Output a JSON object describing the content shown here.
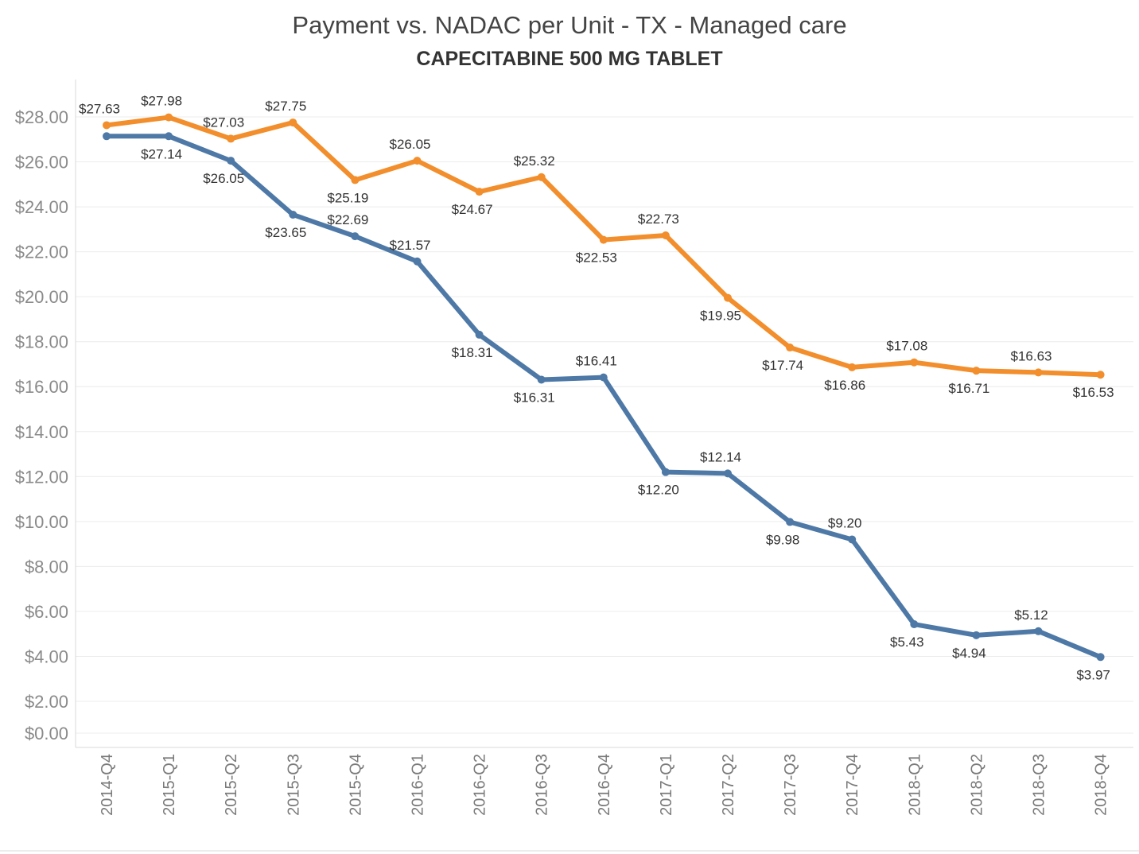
{
  "chart_data": {
    "type": "line",
    "title": "Payment vs. NADAC per Unit - TX - Managed care",
    "subtitle": "CAPECITABINE 500 MG TABLET",
    "categories": [
      "2014-Q4",
      "2015-Q1",
      "2015-Q2",
      "2015-Q3",
      "2015-Q4",
      "2016-Q1",
      "2016-Q2",
      "2016-Q3",
      "2016-Q4",
      "2017-Q1",
      "2017-Q2",
      "2017-Q3",
      "2017-Q4",
      "2018-Q1",
      "2018-Q2",
      "2018-Q3",
      "2018-Q4"
    ],
    "series": [
      {
        "color": "#f28e2b",
        "values": [
          27.63,
          27.98,
          27.03,
          27.75,
          25.19,
          26.05,
          24.67,
          25.32,
          22.53,
          22.73,
          19.95,
          17.74,
          16.86,
          17.08,
          16.71,
          16.63,
          16.53
        ],
        "labels": [
          "$27.63",
          "$27.98",
          "$27.03",
          "$27.75",
          "$25.19",
          "$26.05",
          "$24.67",
          "$25.32",
          "$22.53",
          "$22.73",
          "$19.95",
          "$17.74",
          "$16.86",
          "$17.08",
          "$16.71",
          "$16.63",
          "$16.53"
        ],
        "label_positions": [
          "above",
          "above",
          "above",
          "above",
          "below",
          "above",
          "below",
          "above",
          "below",
          "above",
          "below",
          "below",
          "below",
          "above",
          "below",
          "above",
          "below"
        ]
      },
      {
        "color": "#4e79a7",
        "values": [
          27.14,
          27.14,
          26.05,
          23.65,
          22.69,
          21.57,
          18.31,
          16.31,
          16.41,
          12.2,
          12.14,
          9.98,
          9.2,
          5.43,
          4.94,
          5.12,
          3.97
        ],
        "labels": [
          "",
          "$27.14",
          "$26.05",
          "$23.65",
          "$22.69",
          "$21.57",
          "$18.31",
          "$16.31",
          "$16.41",
          "$12.20",
          "$12.14",
          "$9.98",
          "$9.20",
          "$5.43",
          "$4.94",
          "$5.12",
          "$3.97"
        ],
        "label_positions": [
          "none",
          "below",
          "below",
          "below",
          "above",
          "above",
          "below",
          "below",
          "above",
          "below",
          "above",
          "below",
          "above",
          "below",
          "below",
          "above",
          "below"
        ]
      }
    ],
    "yticks": [
      "$0.00",
      "$2.00",
      "$4.00",
      "$6.00",
      "$8.00",
      "$10.00",
      "$12.00",
      "$14.00",
      "$16.00",
      "$18.00",
      "$20.00",
      "$22.00",
      "$24.00",
      "$26.00",
      "$28.00"
    ],
    "ytick_values": [
      0,
      2,
      4,
      6,
      8,
      10,
      12,
      14,
      16,
      18,
      20,
      22,
      24,
      26,
      28
    ],
    "ylim": [
      0,
      28
    ],
    "grid": true,
    "legend": "none"
  }
}
